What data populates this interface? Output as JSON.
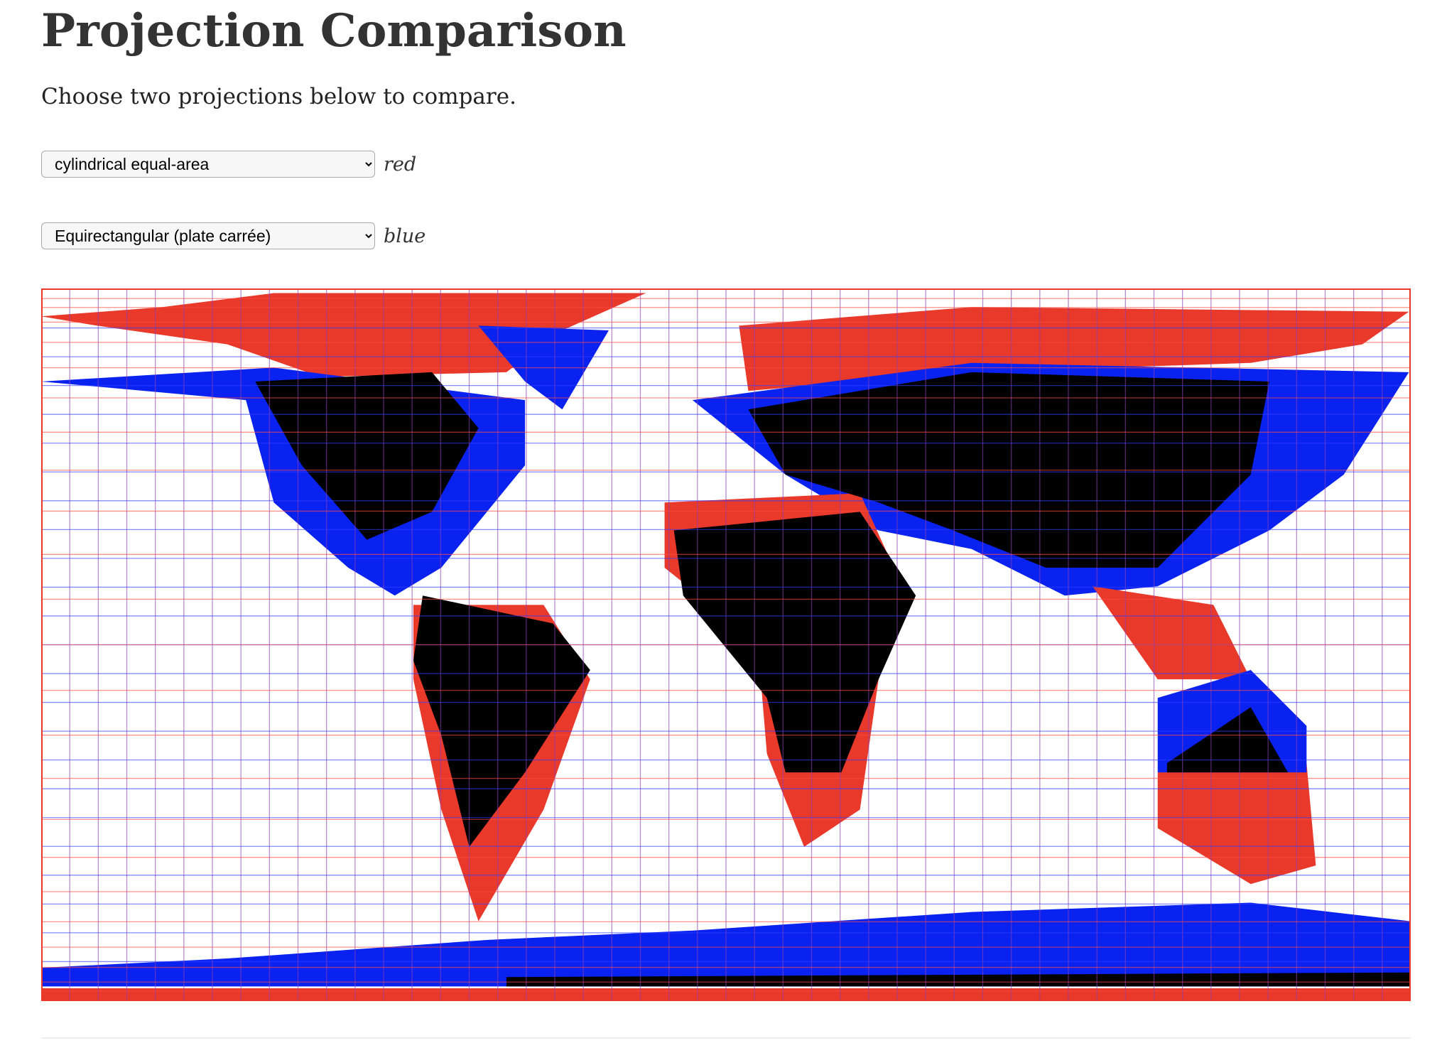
{
  "header": {
    "title": "Projection Comparison",
    "intro": "Choose two projections below to compare."
  },
  "selectors": [
    {
      "selected": "cylindrical equal-area",
      "label": "red"
    },
    {
      "selected": "Equirectangular (plate carrée)",
      "label": "blue"
    }
  ]
}
